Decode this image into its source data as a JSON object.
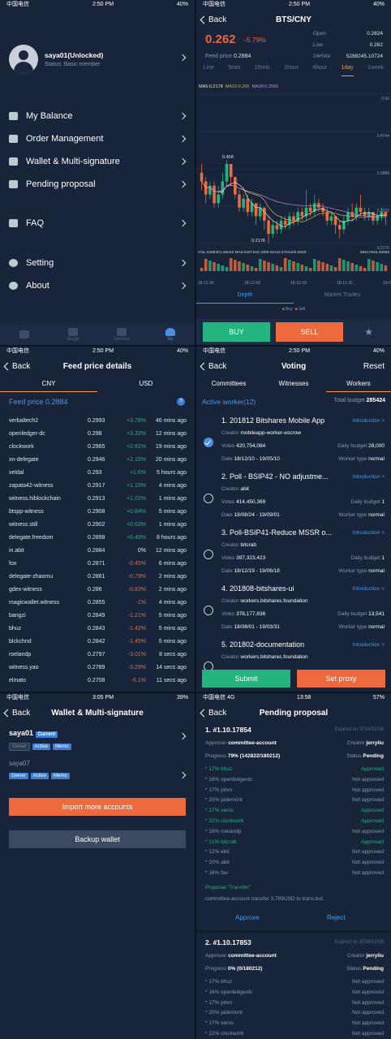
{
  "colors": {
    "up": "#24b47f",
    "down": "#ec6a3d",
    "accent": "#4c9ae6",
    "orange": "#f59a35"
  },
  "p1": {
    "status": {
      "carrier": "中国电信",
      "time": "2:50 PM",
      "battery": "40%"
    },
    "profile": {
      "name": "saya01(Unlocked)",
      "status": "Status: Basic member"
    },
    "menu": [
      "My Balance",
      "Order Management",
      "Wallet & Multi-signature",
      "Pending proposal",
      "FAQ",
      "Setting",
      "About"
    ],
    "tabs": [
      "",
      "Margin",
      "Services",
      "My"
    ]
  },
  "p2": {
    "status": {
      "carrier": "中国电信",
      "time": "2:50 PM",
      "battery": "40%"
    },
    "back": "Back",
    "title": "BTS/CNY",
    "price": "0.262",
    "change": "-5.79%",
    "feed": {
      "label": "Feed price",
      "value": "0.2884"
    },
    "stats": [
      {
        "k": "Open",
        "v": "0.2824"
      },
      {
        "k": "Low",
        "v": "0.262"
      },
      {
        "k": "24HVol",
        "v": "5288245.10724"
      }
    ],
    "intervals": [
      "Line",
      "5min",
      "15min",
      "1hour",
      "4hour",
      "1day",
      "1week"
    ],
    "ma": {
      "ma5": "MA5:0.2178",
      "ma10": "MA10:0.265",
      "ma30": "MA30:0.2556"
    },
    "vol": {
      "vol": "VOL:5288401.90043",
      "ma5": "MA5:5407103.1999",
      "ma10": "MA10:3751506.6058",
      "right": "96517646.39066"
    },
    "segments": [
      "Depth",
      "Market Trades"
    ],
    "legend": {
      "buy": "Buy",
      "sell": "Sell"
    },
    "buttons": {
      "buy": "BUY",
      "sell": "SELL"
    }
  },
  "chart_data": {
    "type": "candlestick",
    "y_labels": [
      "0.56",
      "0.4744",
      "0.3888",
      "0.3032",
      "0.2176"
    ],
    "ylim": [
      0.2176,
      0.56
    ],
    "x_labels": [
      "18-11-26",
      "18-12-08",
      "18-12-19",
      "18-12-31",
      "19-01-10"
    ],
    "annotations": [
      {
        "text": "0.409",
        "value": 0.409
      },
      {
        "text": "0.2176",
        "value": 0.2176
      }
    ],
    "candles": [
      [
        0.38,
        0.36,
        0.4,
        0.34
      ],
      [
        0.36,
        0.33,
        0.37,
        0.31
      ],
      [
        0.33,
        0.35,
        0.36,
        0.32
      ],
      [
        0.35,
        0.31,
        0.36,
        0.3
      ],
      [
        0.31,
        0.33,
        0.35,
        0.3
      ],
      [
        0.33,
        0.36,
        0.38,
        0.32
      ],
      [
        0.36,
        0.4,
        0.409,
        0.35
      ],
      [
        0.4,
        0.37,
        0.4,
        0.35
      ],
      [
        0.37,
        0.33,
        0.37,
        0.32
      ],
      [
        0.33,
        0.3,
        0.34,
        0.29
      ],
      [
        0.3,
        0.32,
        0.33,
        0.29
      ],
      [
        0.32,
        0.29,
        0.33,
        0.28
      ],
      [
        0.29,
        0.31,
        0.32,
        0.28
      ],
      [
        0.31,
        0.28,
        0.31,
        0.26
      ],
      [
        0.28,
        0.3,
        0.31,
        0.27
      ],
      [
        0.3,
        0.27,
        0.3,
        0.25
      ],
      [
        0.27,
        0.24,
        0.28,
        0.2176
      ],
      [
        0.24,
        0.26,
        0.27,
        0.23
      ],
      [
        0.26,
        0.25,
        0.27,
        0.24
      ],
      [
        0.25,
        0.27,
        0.28,
        0.24
      ],
      [
        0.27,
        0.26,
        0.28,
        0.25
      ],
      [
        0.26,
        0.28,
        0.29,
        0.25
      ],
      [
        0.28,
        0.27,
        0.29,
        0.26
      ],
      [
        0.27,
        0.29,
        0.3,
        0.26
      ],
      [
        0.29,
        0.28,
        0.3,
        0.27
      ],
      [
        0.28,
        0.3,
        0.34,
        0.27
      ],
      [
        0.3,
        0.29,
        0.31,
        0.28
      ],
      [
        0.29,
        0.31,
        0.33,
        0.28
      ],
      [
        0.31,
        0.3,
        0.32,
        0.29
      ],
      [
        0.3,
        0.29,
        0.31,
        0.28
      ],
      [
        0.29,
        0.27,
        0.3,
        0.26
      ],
      [
        0.27,
        0.28,
        0.29,
        0.26
      ],
      [
        0.28,
        0.26,
        0.28,
        0.24
      ],
      [
        0.26,
        0.25,
        0.27,
        0.23
      ],
      [
        0.25,
        0.27,
        0.28,
        0.24
      ],
      [
        0.27,
        0.29,
        0.3,
        0.26
      ],
      [
        0.29,
        0.28,
        0.31,
        0.27
      ],
      [
        0.28,
        0.3,
        0.31,
        0.27
      ],
      [
        0.3,
        0.29,
        0.33,
        0.28
      ],
      [
        0.29,
        0.28,
        0.3,
        0.27
      ],
      [
        0.28,
        0.29,
        0.3,
        0.27
      ],
      [
        0.29,
        0.27,
        0.29,
        0.26
      ],
      [
        0.27,
        0.28,
        0.29,
        0.26
      ],
      [
        0.28,
        0.29,
        0.3,
        0.27
      ],
      [
        0.29,
        0.28,
        0.29,
        0.26
      ]
    ]
  },
  "p3": {
    "status": {
      "carrier": "中国电信",
      "time": "2:50 PM",
      "battery": "40%"
    },
    "back": "Back",
    "title": "Feed price details",
    "tabs": [
      "CNY",
      "USD"
    ],
    "feed_label": "Feed price 0.2884",
    "rows": [
      {
        "n": "verbaltech2",
        "v": "0.2993",
        "c": "+3.78%",
        "t": "46 mins ago",
        "d": "up"
      },
      {
        "n": "openledger-dc",
        "v": "0.298",
        "c": "+3.33%",
        "t": "12 mins ago",
        "d": "up"
      },
      {
        "n": "clockwork",
        "v": "0.2965",
        "c": "+2.81%",
        "t": "19 mins ago",
        "d": "up"
      },
      {
        "n": "xn-delegate",
        "v": "0.2946",
        "c": "+2.15%",
        "t": "20 mins ago",
        "d": "up"
      },
      {
        "n": "xeldal",
        "v": "0.293",
        "c": "+1.6%",
        "t": "5 hours ago",
        "d": "up"
      },
      {
        "n": "zapata42-witness",
        "v": "0.2917",
        "c": "+1.15%",
        "t": "4 mins ago",
        "d": "up"
      },
      {
        "n": "witness.hiblockchain",
        "v": "0.2913",
        "c": "+1.01%",
        "t": "1 mins ago",
        "d": "up"
      },
      {
        "n": "btspp-witness",
        "v": "0.2908",
        "c": "+0.84%",
        "t": "5 mins ago",
        "d": "up"
      },
      {
        "n": "witness.still",
        "v": "0.2902",
        "c": "+0.63%",
        "t": "1 mins ago",
        "d": "up"
      },
      {
        "n": "delegate.freedom",
        "v": "0.2898",
        "c": "+0.49%",
        "t": "8 hours ago",
        "d": "up"
      },
      {
        "n": "in.abit",
        "v": "0.2884",
        "c": "0%",
        "t": "12 mins ago",
        "d": "flat"
      },
      {
        "n": "fox",
        "v": "0.2871",
        "c": "-0.45%",
        "t": "6 mins ago",
        "d": "dn"
      },
      {
        "n": "delegate-zhaomu",
        "v": "0.2861",
        "c": "-0.79%",
        "t": "2 mins ago",
        "d": "dn"
      },
      {
        "n": "gdex-witness",
        "v": "0.286",
        "c": "-0.83%",
        "t": "2 mins ago",
        "d": "dn"
      },
      {
        "n": "magicwallet.witness",
        "v": "0.2855",
        "c": "-1%",
        "t": "4 mins ago",
        "d": "dn"
      },
      {
        "n": "bangzi",
        "v": "0.2849",
        "c": "-1.21%",
        "t": "5 mins ago",
        "d": "dn"
      },
      {
        "n": "bhuz",
        "v": "0.2843",
        "c": "-1.42%",
        "t": "5 mins ago",
        "d": "dn"
      },
      {
        "n": "blckchnd",
        "v": "0.2842",
        "c": "-1.45%",
        "t": "5 mins ago",
        "d": "dn"
      },
      {
        "n": "roelandp",
        "v": "0.2797",
        "c": "-3.01%",
        "t": "8 secs ago",
        "d": "dn"
      },
      {
        "n": "witness.yao",
        "v": "0.2789",
        "c": "-3.29%",
        "t": "14 secs ago",
        "d": "dn"
      },
      {
        "n": "elmato",
        "v": "0.2708",
        "c": "-6.1%",
        "t": "11 secs ago",
        "d": "dn"
      }
    ]
  },
  "p4": {
    "status": {
      "carrier": "中国电信",
      "time": "2:50 PM",
      "battery": "40%"
    },
    "back": "Back",
    "title": "Voting",
    "reset": "Reset",
    "tabs": [
      "Committees",
      "Witnesses",
      "Workers"
    ],
    "active": "Active worker(12)",
    "budget_label": "Total budget",
    "budget": "285424",
    "intro": "Introduction >",
    "labels": {
      "creator": "Creator",
      "votes": "Votes",
      "date": "Date",
      "daily": "Daily budget",
      "type": "Worker type"
    },
    "workers": [
      {
        "title": "1. 201812 Bitshares Mobile App",
        "creator": "mobileapp-worker-escrow",
        "votes": "420,754,084",
        "daily": "28,000",
        "date": "18/12/10 - 19/05/10",
        "type": "normal"
      },
      {
        "title": "2. Poll - BSIP42 - NO adjustme...",
        "creator": "abit",
        "votes": "414,450,369",
        "daily": "1",
        "date": "18/08/24 - 19/09/01",
        "type": "normal"
      },
      {
        "title": "3. Poll-BSIP41-Reduce MSSR o...",
        "creator": "bitcrab",
        "votes": "397,323,423",
        "daily": "1",
        "date": "18/12/19 - 19/06/18",
        "type": "normal"
      },
      {
        "title": "4. 201808-bitshares-ui",
        "creator": "workers.bitshares.foundation",
        "votes": "378,177,836",
        "daily": "13,541",
        "date": "18/08/01 - 19/03/31",
        "type": "normal"
      },
      {
        "title": "5. 201802-documentation",
        "creator": "workers.bitshares.foundation",
        "votes": "",
        "daily": "",
        "date": "",
        "type": ""
      }
    ],
    "buttons": {
      "submit": "Submit",
      "proxy": "Set proxy"
    }
  },
  "p5": {
    "status": {
      "carrier": "中国电信",
      "time": "3:05 PM",
      "battery": "39%"
    },
    "back": "Back",
    "title": "Wallet & Multi-signature",
    "acc1": "saya01",
    "current": "Current",
    "tags1": [
      "Owner",
      "Active",
      "Memo"
    ],
    "acc2": "saya07",
    "tags2": [
      "Owner",
      "Active",
      "Memo"
    ],
    "import": "Import more accounts",
    "backup": "Backup wallet"
  },
  "p6": {
    "status": {
      "carrier": "中国电信 4G",
      "time": "13:58",
      "battery": "57%"
    },
    "back": "Back",
    "title": "Pending proposal",
    "p1": {
      "head": "1. #1.10.17854",
      "expired": "Expired on 2019/01/08",
      "approver_label": "Approver",
      "approver": "committee-account",
      "creator_label": "Creator",
      "creator": "jerryliu",
      "progress_label": "Progress",
      "progress": "79% (142822/180212)",
      "status_label": "Status",
      "status": "Pending",
      "votes": [
        {
          "a": "* 17% bhuz",
          "s": "Approved",
          "ok": true
        },
        {
          "a": "* 16% openledgerdc",
          "s": "Not approved",
          "ok": false
        },
        {
          "a": "* 17% johnr",
          "s": "Not approved",
          "ok": false
        },
        {
          "a": "* 20% jademont",
          "s": "Not approved",
          "ok": false
        },
        {
          "a": "* 17% xeroc",
          "s": "Approved",
          "ok": true
        },
        {
          "a": "* 22% clockwork",
          "s": "Approved",
          "ok": true
        },
        {
          "a": "* 16% roelandp",
          "s": "Not approved",
          "ok": false
        },
        {
          "a": "* 21% bitcrab",
          "s": "Approved",
          "ok": true
        },
        {
          "a": "* 12% ebit",
          "s": "Not approved",
          "ok": false
        },
        {
          "a": "* 20% abit",
          "s": "Not approved",
          "ok": false
        },
        {
          "a": "* 16% fav",
          "s": "Not approved",
          "ok": false
        }
      ],
      "ptitle": "Proposal \"Transfer\"",
      "pdesc": "committee-account transfer 3,789USD to trans.bot.",
      "approve": "Approve",
      "reject": "Reject"
    },
    "p2": {
      "head": "2. #1.10.17853",
      "expired": "Expired on 2019/01/08",
      "approver_label": "Approver",
      "approver": "committee-account",
      "creator_label": "Creator",
      "creator": "jerryliu",
      "progress_label": "Progress",
      "progress": "0% (0/180212)",
      "status_label": "Status",
      "status": "Pending",
      "votes": [
        {
          "a": "* 17% bhuz",
          "s": "Not approved",
          "ok": false
        },
        {
          "a": "* 16% openledgerdc",
          "s": "Not approved",
          "ok": false
        },
        {
          "a": "* 17% johnr",
          "s": "Not approved",
          "ok": false
        },
        {
          "a": "* 20% jademont",
          "s": "Not approved",
          "ok": false
        },
        {
          "a": "* 17% xeroc",
          "s": "Not approved",
          "ok": false
        },
        {
          "a": "* 22% clockwork",
          "s": "Not approved",
          "ok": false
        }
      ]
    }
  }
}
